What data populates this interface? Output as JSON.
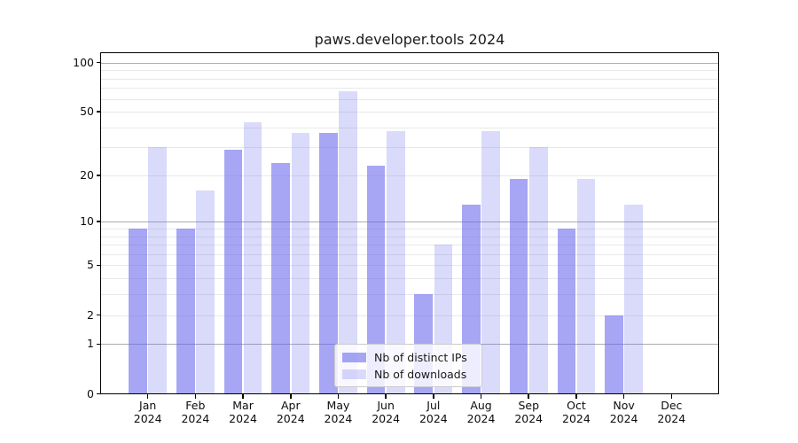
{
  "chart_data": {
    "type": "bar",
    "title": "paws.developer.tools 2024",
    "categories": [
      {
        "month": "Jan",
        "year": "2024"
      },
      {
        "month": "Feb",
        "year": "2024"
      },
      {
        "month": "Mar",
        "year": "2024"
      },
      {
        "month": "Apr",
        "year": "2024"
      },
      {
        "month": "May",
        "year": "2024"
      },
      {
        "month": "Jun",
        "year": "2024"
      },
      {
        "month": "Jul",
        "year": "2024"
      },
      {
        "month": "Aug",
        "year": "2024"
      },
      {
        "month": "Sep",
        "year": "2024"
      },
      {
        "month": "Oct",
        "year": "2024"
      },
      {
        "month": "Nov",
        "year": "2024"
      },
      {
        "month": "Dec",
        "year": "2024"
      }
    ],
    "series": [
      {
        "name": "Nb of distinct IPs",
        "color": "rgba(102,102,238,0.58)",
        "values": [
          9,
          9,
          29,
          24,
          37,
          23,
          3,
          13,
          19,
          9,
          2,
          0
        ]
      },
      {
        "name": "Nb of downloads",
        "color": "rgba(102,102,238,0.24)",
        "values": [
          30,
          16,
          43,
          37,
          67,
          38,
          7,
          38,
          30,
          19,
          13,
          0
        ]
      }
    ],
    "yscale": "log1p",
    "ylim": [
      0,
      115
    ],
    "yticks": [
      0,
      1,
      2,
      5,
      10,
      20,
      50,
      100
    ],
    "decade_gridlines": [
      1,
      10,
      100
    ],
    "minor_gridlines": [
      3,
      4,
      6,
      7,
      8,
      9,
      30,
      40,
      60,
      70,
      80,
      90
    ],
    "grid": true,
    "legend_position": "lower center"
  }
}
